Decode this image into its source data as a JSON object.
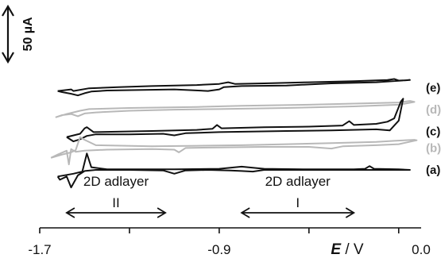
{
  "chart_data": {
    "type": "line",
    "xlabel_var": "E",
    "xlabel_unit": " / V",
    "xlim": [
      -1.7,
      0.0
    ],
    "x_ticks": [
      -1.7,
      -1.3,
      -0.9,
      -0.5,
      -0.1
    ],
    "x_tick_labels": [
      {
        "value": -1.7,
        "label": "-1.7"
      },
      {
        "value": -0.9,
        "label": "-0.9"
      },
      {
        "value": 0.0,
        "label": "0.0"
      }
    ],
    "scale_bar": {
      "label": "50 µA",
      "value_uA": 50
    },
    "series": [
      {
        "name": "(e)",
        "color": "#111111",
        "offset_uA": 150,
        "anodic": [
          [
            -1.62,
            -6
          ],
          [
            -1.56,
            -3
          ],
          [
            -1.55,
            -6
          ],
          [
            -1.48,
            -1
          ],
          [
            -1.35,
            1
          ],
          [
            -1.2,
            3
          ],
          [
            -1.0,
            5
          ],
          [
            -0.9,
            7
          ],
          [
            -0.86,
            10
          ],
          [
            -0.83,
            7
          ],
          [
            -0.7,
            8
          ],
          [
            -0.5,
            10
          ],
          [
            -0.3,
            12
          ],
          [
            -0.15,
            14
          ],
          [
            -0.12,
            16
          ],
          [
            -0.1,
            13
          ],
          [
            -0.05,
            14
          ]
        ],
        "cathodic": [
          [
            -0.05,
            14
          ],
          [
            -0.2,
            10
          ],
          [
            -0.4,
            8
          ],
          [
            -0.6,
            4
          ],
          [
            -0.8,
            3
          ],
          [
            -0.88,
            1
          ],
          [
            -0.9,
            -3
          ],
          [
            -0.95,
            -6
          ],
          [
            -1.1,
            -3
          ],
          [
            -1.4,
            -5
          ],
          [
            -1.47,
            -7
          ],
          [
            -1.5,
            -10
          ],
          [
            -1.53,
            -14
          ],
          [
            -1.56,
            -11
          ],
          [
            -1.6,
            -8
          ],
          [
            -1.62,
            -6
          ]
        ]
      },
      {
        "name": "(d)",
        "color": "#b8b8b8",
        "offset_uA": 110,
        "anodic": [
          [
            -1.63,
            -14
          ],
          [
            -1.58,
            -8
          ],
          [
            -1.52,
            -2
          ],
          [
            -1.48,
            1
          ],
          [
            -1.3,
            3
          ],
          [
            -1.0,
            5
          ],
          [
            -0.8,
            7
          ],
          [
            -0.5,
            9
          ],
          [
            -0.3,
            11
          ],
          [
            -0.1,
            13
          ],
          [
            -0.05,
            16
          ],
          [
            -0.03,
            14
          ]
        ],
        "cathodic": [
          [
            -0.03,
            14
          ],
          [
            -0.1,
            9
          ],
          [
            -0.3,
            6
          ],
          [
            -0.6,
            3
          ],
          [
            -0.9,
            1
          ],
          [
            -1.1,
            0
          ],
          [
            -1.3,
            -2
          ],
          [
            -1.45,
            -5
          ],
          [
            -1.5,
            -7
          ],
          [
            -1.53,
            -12
          ],
          [
            -1.56,
            -8
          ],
          [
            -1.6,
            -10
          ],
          [
            -1.63,
            -14
          ]
        ]
      },
      {
        "name": "(c)",
        "color": "#111111",
        "offset_uA": 70,
        "anodic": [
          [
            -1.58,
            -10
          ],
          [
            -1.52,
            -4
          ],
          [
            -1.5,
            6
          ],
          [
            -1.49,
            8
          ],
          [
            -1.46,
            -1
          ],
          [
            -1.2,
            1
          ],
          [
            -1.0,
            3
          ],
          [
            -0.93,
            5
          ],
          [
            -0.91,
            12
          ],
          [
            -0.89,
            6
          ],
          [
            -0.7,
            8
          ],
          [
            -0.5,
            9
          ],
          [
            -0.35,
            11
          ],
          [
            -0.32,
            19
          ],
          [
            -0.3,
            12
          ],
          [
            -0.2,
            14
          ],
          [
            -0.15,
            18
          ],
          [
            -0.12,
            24
          ],
          [
            -0.09,
            55
          ],
          [
            -0.08,
            60
          ]
        ],
        "cathodic": [
          [
            -0.08,
            60
          ],
          [
            -0.1,
            20
          ],
          [
            -0.14,
            2
          ],
          [
            -0.2,
            4
          ],
          [
            -0.4,
            2
          ],
          [
            -0.6,
            1
          ],
          [
            -0.9,
            -1
          ],
          [
            -1.05,
            -3
          ],
          [
            -1.1,
            -7
          ],
          [
            -1.15,
            -4
          ],
          [
            -1.3,
            -5
          ],
          [
            -1.45,
            -5
          ],
          [
            -1.49,
            -8
          ],
          [
            -1.52,
            -14
          ],
          [
            -1.55,
            -18
          ],
          [
            -1.58,
            -10
          ]
        ]
      },
      {
        "name": "(b)",
        "color": "#b8b8b8",
        "offset_uA": 40,
        "anodic": [
          [
            -1.65,
            -18
          ],
          [
            -1.6,
            -12
          ],
          [
            -1.56,
            -8
          ],
          [
            -1.54,
            -4
          ],
          [
            -1.52,
            20
          ],
          [
            -1.5,
            15
          ],
          [
            -1.45,
            5
          ],
          [
            -1.2,
            3
          ],
          [
            -1.0,
            4
          ],
          [
            -0.8,
            5
          ],
          [
            -0.6,
            7
          ],
          [
            -0.4,
            9
          ],
          [
            -0.2,
            11
          ],
          [
            -0.12,
            13
          ],
          [
            -0.03,
            15
          ],
          [
            -0.02,
            14
          ]
        ],
        "cathodic": [
          [
            -0.02,
            14
          ],
          [
            -0.1,
            7
          ],
          [
            -0.2,
            5
          ],
          [
            -0.35,
            3
          ],
          [
            -0.4,
            -1
          ],
          [
            -0.5,
            2
          ],
          [
            -0.7,
            2
          ],
          [
            -0.9,
            1
          ],
          [
            -1.05,
            0
          ],
          [
            -1.08,
            -8
          ],
          [
            -1.1,
            -3
          ],
          [
            -1.2,
            -2
          ],
          [
            -1.4,
            -3
          ],
          [
            -1.5,
            -5
          ],
          [
            -1.54,
            -7
          ],
          [
            -1.56,
            -2
          ],
          [
            -1.57,
            -30
          ],
          [
            -1.58,
            -5
          ],
          [
            -1.62,
            -12
          ],
          [
            -1.65,
            -18
          ]
        ]
      },
      {
        "name": "(a)",
        "color": "#111111",
        "offset_uA": 0,
        "anodic": [
          [
            -1.62,
            -12
          ],
          [
            -1.55,
            -7
          ],
          [
            -1.51,
            -3
          ],
          [
            -1.49,
            30
          ],
          [
            -1.47,
            5
          ],
          [
            -1.4,
            1
          ],
          [
            -1.2,
            1
          ],
          [
            -1.1,
            1
          ],
          [
            -0.9,
            2
          ],
          [
            -0.8,
            6
          ],
          [
            -0.75,
            4
          ],
          [
            -0.7,
            2
          ],
          [
            -0.5,
            1
          ],
          [
            -0.3,
            1
          ],
          [
            -0.25,
            2
          ],
          [
            -0.23,
            7
          ],
          [
            -0.21,
            2
          ],
          [
            -0.1,
            1
          ],
          [
            -0.05,
            0
          ]
        ],
        "cathodic": [
          [
            -0.05,
            0
          ],
          [
            -0.2,
            0
          ],
          [
            -0.5,
            0
          ],
          [
            -0.7,
            0
          ],
          [
            -0.75,
            -3
          ],
          [
            -0.8,
            -2
          ],
          [
            -0.85,
            -1
          ],
          [
            -0.95,
            0
          ],
          [
            -1.05,
            -1
          ],
          [
            -1.1,
            -7
          ],
          [
            -1.15,
            -1
          ],
          [
            -1.3,
            0
          ],
          [
            -1.45,
            0
          ],
          [
            -1.5,
            -2
          ],
          [
            -1.53,
            -10
          ],
          [
            -1.56,
            -32
          ],
          [
            -1.58,
            -12
          ],
          [
            -1.61,
            -18
          ],
          [
            -1.62,
            -12
          ]
        ]
      }
    ],
    "annotations": [
      {
        "label": "2D adlayer",
        "sub": "II",
        "x_from": -1.58,
        "x_to": -1.14
      },
      {
        "label": "2D adlayer",
        "sub": "I",
        "x_from": -0.8,
        "x_to": -0.3
      }
    ]
  }
}
